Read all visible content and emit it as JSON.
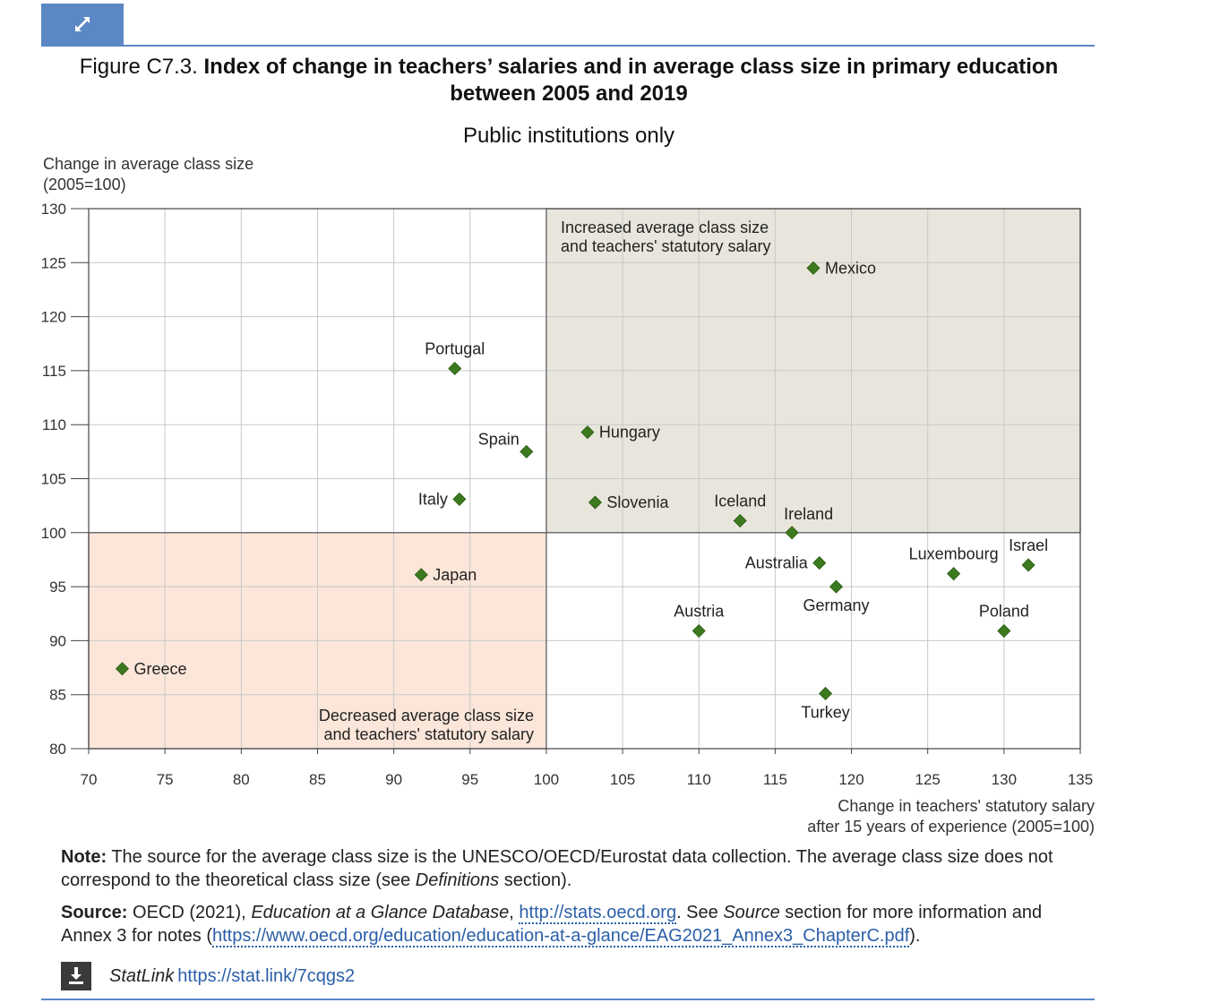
{
  "header": {
    "expand_icon": "expand-arrows-icon",
    "figure_label": "Figure C7.3.",
    "title_bold": "Index of change in teachers’ salaries and in average class size in primary education between 2005 and 2019",
    "subtitle": "Public institutions only"
  },
  "chart_data": {
    "type": "scatter",
    "ylabel_line1": "Change in average class size",
    "ylabel_line2": "(2005=100)",
    "xlabel_line1": "Change in teachers' statutory salary",
    "xlabel_line2": "after 15 years of experience (2005=100)",
    "xlim": [
      70,
      135
    ],
    "ylim": [
      80,
      130
    ],
    "x_ticks": [
      70,
      75,
      80,
      85,
      90,
      95,
      100,
      105,
      110,
      115,
      120,
      125,
      130,
      135
    ],
    "y_ticks": [
      80,
      85,
      90,
      95,
      100,
      105,
      110,
      115,
      120,
      125,
      130
    ],
    "grid": true,
    "marker_color": "#3d7a1f",
    "quadrants": [
      {
        "name": "increased",
        "x": [
          100,
          135
        ],
        "y": [
          100,
          130
        ],
        "color": "#e8e6dc",
        "label_line1": "Increased average class size",
        "label_line2": "and teachers' statutory salary"
      },
      {
        "name": "decreased",
        "x": [
          70,
          100
        ],
        "y": [
          80,
          100
        ],
        "color": "#fbe6d9",
        "label_line1": "Decreased average class size",
        "label_line2": "and teachers' statutory salary"
      }
    ],
    "points": [
      {
        "label": "Mexico",
        "x": 117.5,
        "y": 124.5,
        "anchor": "right"
      },
      {
        "label": "Portugal",
        "x": 94.0,
        "y": 115.2,
        "anchor": "above"
      },
      {
        "label": "Hungary",
        "x": 102.7,
        "y": 109.3,
        "anchor": "right"
      },
      {
        "label": "Spain",
        "x": 98.7,
        "y": 107.5,
        "anchor": "above-left"
      },
      {
        "label": "Italy",
        "x": 94.3,
        "y": 103.1,
        "anchor": "left"
      },
      {
        "label": "Slovenia",
        "x": 103.2,
        "y": 102.8,
        "anchor": "right"
      },
      {
        "label": "Iceland",
        "x": 112.7,
        "y": 101.1,
        "anchor": "above"
      },
      {
        "label": "Ireland",
        "x": 116.1,
        "y": 100.0,
        "anchor": "above-right"
      },
      {
        "label": "Australia",
        "x": 117.9,
        "y": 97.2,
        "anchor": "left"
      },
      {
        "label": "Luxembourg",
        "x": 126.7,
        "y": 96.2,
        "anchor": "above"
      },
      {
        "label": "Israel",
        "x": 131.6,
        "y": 97.0,
        "anchor": "above"
      },
      {
        "label": "Japan",
        "x": 91.8,
        "y": 96.1,
        "anchor": "right"
      },
      {
        "label": "Germany",
        "x": 119.0,
        "y": 95.0,
        "anchor": "below"
      },
      {
        "label": "Austria",
        "x": 110.0,
        "y": 90.9,
        "anchor": "above"
      },
      {
        "label": "Poland",
        "x": 130.0,
        "y": 90.9,
        "anchor": "above"
      },
      {
        "label": "Greece",
        "x": 72.2,
        "y": 87.4,
        "anchor": "right"
      },
      {
        "label": "Turkey",
        "x": 118.3,
        "y": 85.1,
        "anchor": "below"
      }
    ]
  },
  "footer": {
    "note_label": "Note:",
    "note_text": "The source for the average class size is the UNESCO/OECD/Eurostat data collection. The average class size does not correspond to the theoretical class size (see",
    "note_italic": "Definitions",
    "note_end": "section).",
    "source_label": "Source:",
    "source_text1": "OECD (2021),",
    "source_italic": "Education at a Glance Database",
    "source_link1": "http://stats.oecd.org",
    "source_text2": ". See",
    "source_italic2": "Source",
    "source_text3": "section for more information and Annex 3 for notes (",
    "source_link2": "https://www.oecd.org/education/education-at-a-glance/EAG2021_Annex3_ChapterC.pdf",
    "source_text4": ").",
    "download_icon": "download-icon",
    "statlink_label": "StatLink",
    "statlink_url": "https://stat.link/7cqgs2"
  }
}
